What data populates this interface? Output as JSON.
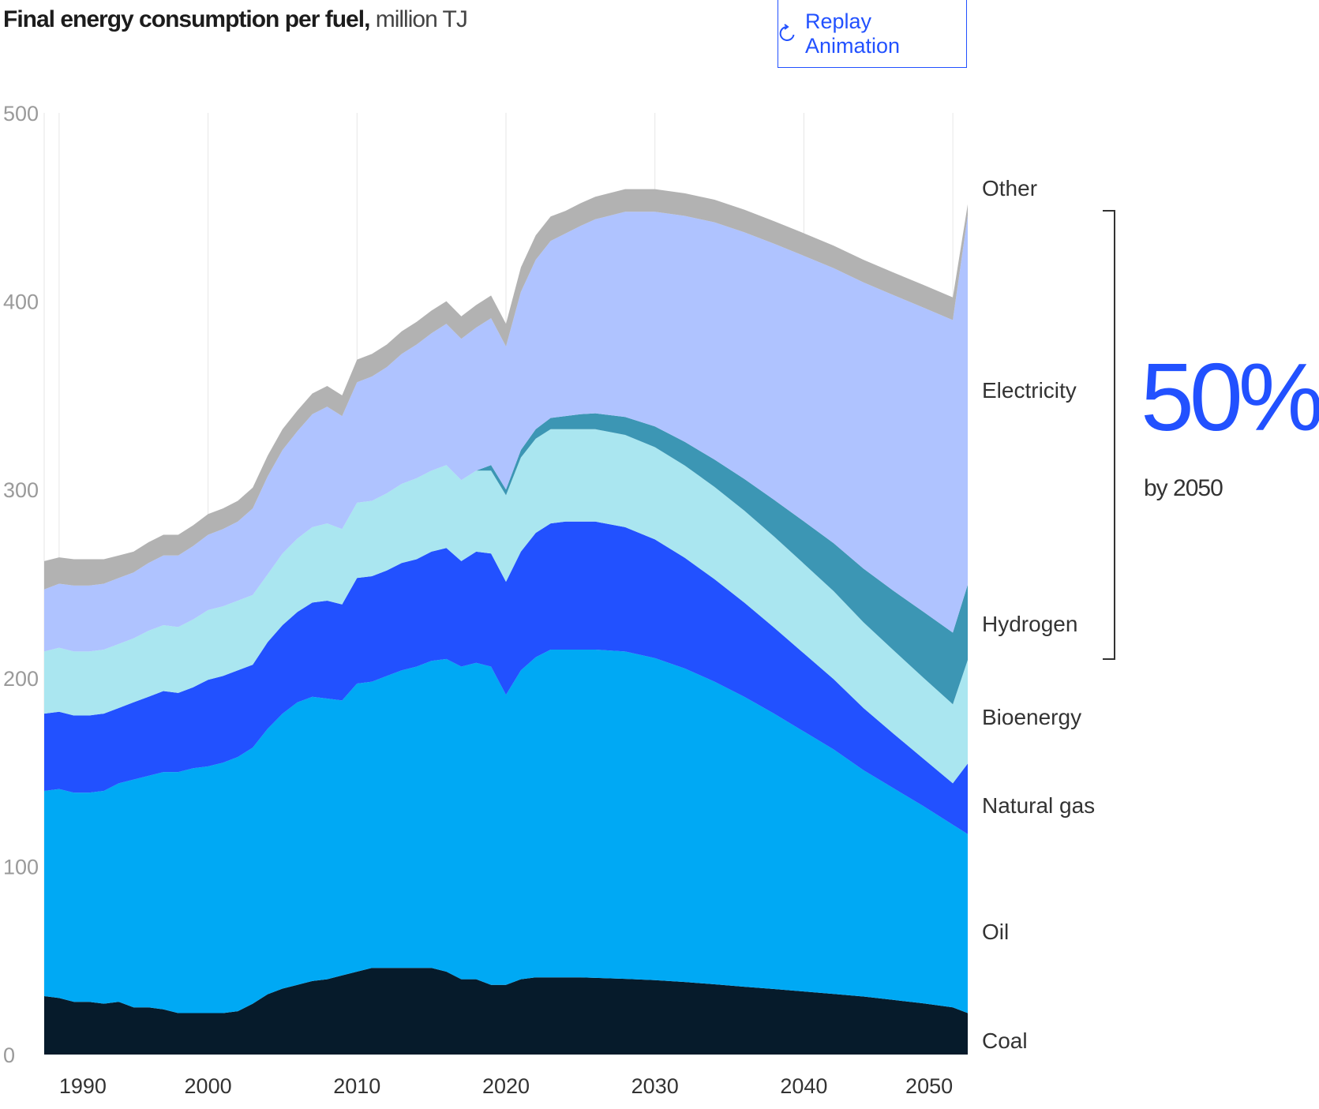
{
  "header": {
    "title_bold": "Final energy consumption per fuel,",
    "title_unit": " million TJ",
    "replay_label": "Replay Animation",
    "replay_icon": "replay-icon"
  },
  "annotation": {
    "percent": "50%",
    "caption": "by 2050"
  },
  "colors": {
    "Coal": "#061b2b",
    "Oil": "#00a9f4",
    "Natural gas": "#2251ff",
    "Bioenergy": "#aae6f0",
    "Hydrogen": "#3c96b4",
    "Electricity": "#afc3ff",
    "Other": "#b2b2b2",
    "accent": "#2251ff"
  },
  "chart_data": {
    "type": "area",
    "stacked": true,
    "title": "Final energy consumption per fuel, million TJ",
    "xlabel": "",
    "ylabel": "",
    "xlim": [
      1989,
      2051
    ],
    "ylim": [
      0,
      500
    ],
    "grid": "vertical",
    "x_ticks": [
      1990,
      2000,
      2010,
      2020,
      2030,
      2040,
      2050
    ],
    "y_ticks": [
      0,
      100,
      200,
      300,
      400,
      500
    ],
    "legend_placement": "right, inline labels",
    "x": [
      1989,
      1990,
      1991,
      1992,
      1993,
      1994,
      1995,
      1996,
      1997,
      1998,
      1999,
      2000,
      2001,
      2002,
      2003,
      2004,
      2005,
      2006,
      2007,
      2008,
      2009,
      2010,
      2011,
      2012,
      2013,
      2014,
      2015,
      2016,
      2017,
      2018,
      2019,
      2020,
      2021,
      2022,
      2023,
      2024,
      2025,
      2026,
      2028,
      2030,
      2032,
      2034,
      2036,
      2038,
      2040,
      2042,
      2044,
      2046,
      2048,
      2050,
      2051
    ],
    "series": [
      {
        "name": "Coal",
        "values": [
          31,
          30,
          28,
          28,
          27,
          28,
          25,
          25,
          24,
          22,
          22,
          22,
          22,
          23,
          27,
          32,
          35,
          37,
          39,
          40,
          42,
          44,
          46,
          46,
          46,
          46,
          46,
          44,
          40,
          40,
          37,
          37,
          40,
          41,
          41,
          41,
          41,
          40.7,
          40.2,
          39.5,
          38.5,
          37.3,
          36,
          34.8,
          33.5,
          32.2,
          30.8,
          29,
          27.2,
          25,
          22
        ]
      },
      {
        "name": "Oil",
        "values": [
          109,
          111,
          111,
          111,
          113,
          116,
          121,
          123,
          126,
          128,
          130,
          131,
          133,
          135,
          136,
          141,
          146,
          150,
          151,
          149,
          146,
          153,
          152,
          155,
          158,
          160,
          163,
          166,
          166,
          168,
          169,
          154,
          164,
          170,
          174,
          174,
          174,
          174.3,
          173.8,
          171,
          166.5,
          160.7,
          154,
          146.2,
          138,
          129.8,
          120.2,
          112.5,
          104.8,
          97,
          95
        ]
      },
      {
        "name": "Natural gas",
        "values": [
          41,
          41,
          41,
          41,
          41,
          40,
          41,
          42,
          43,
          42,
          43,
          46,
          46,
          46,
          44,
          46,
          47,
          48,
          50,
          52,
          51,
          56,
          56,
          56,
          57,
          57,
          58,
          59,
          56,
          59,
          60,
          60,
          63,
          66,
          67,
          68,
          68,
          68,
          66,
          63,
          58.8,
          54.4,
          50,
          45.7,
          41.5,
          37.3,
          33,
          29,
          25.2,
          22,
          37.5
        ]
      },
      {
        "name": "Bioenergy",
        "values": [
          33,
          34,
          34,
          34,
          34,
          34,
          34,
          35,
          35,
          35,
          36,
          37,
          37,
          37,
          37,
          36,
          38,
          39,
          40,
          41,
          40,
          40,
          40,
          41,
          42,
          43,
          43,
          44,
          43,
          43,
          44,
          46,
          50,
          50,
          50,
          49,
          49,
          49,
          49,
          49,
          49,
          49,
          48.8,
          48.3,
          47.6,
          46.7,
          45.5,
          44.3,
          43,
          42,
          55
        ]
      },
      {
        "name": "Hydrogen",
        "values": [
          0,
          0,
          0,
          0,
          0,
          0,
          0,
          0,
          0,
          0,
          0,
          0,
          0,
          0,
          0,
          0,
          0,
          0,
          0,
          0,
          0,
          0,
          0,
          0,
          0,
          0,
          0,
          0,
          0,
          0,
          3,
          3,
          4,
          5,
          6,
          7,
          8,
          8.5,
          9.5,
          11,
          12.5,
          14.5,
          16.8,
          19.5,
          22.5,
          25.5,
          28.5,
          31.5,
          35,
          38,
          40
        ]
      },
      {
        "name": "Electricity",
        "values": [
          33,
          34,
          35,
          35,
          35,
          35,
          35,
          36,
          37,
          38,
          39,
          40,
          41,
          42,
          46,
          52,
          55,
          57,
          60,
          62,
          60,
          64,
          66,
          67,
          69,
          71,
          73,
          75,
          75,
          76,
          78,
          76,
          84,
          90,
          94,
          97,
          100,
          103,
          109,
          114,
          120,
          126,
          131,
          136,
          141,
          146,
          152,
          157,
          161.5,
          166,
          196
        ]
      },
      {
        "name": "Other",
        "values": [
          15,
          14,
          14,
          14,
          13,
          12,
          11,
          11,
          11,
          11,
          11,
          11,
          11,
          11,
          11,
          11,
          11,
          11,
          11,
          11,
          11,
          12,
          12,
          12,
          12,
          12,
          12,
          12,
          12,
          12,
          12,
          12,
          13,
          13,
          13,
          12,
          12,
          12,
          12,
          12,
          12,
          12,
          12,
          12,
          12,
          12,
          12,
          12,
          12,
          12,
          6
        ]
      }
    ]
  }
}
